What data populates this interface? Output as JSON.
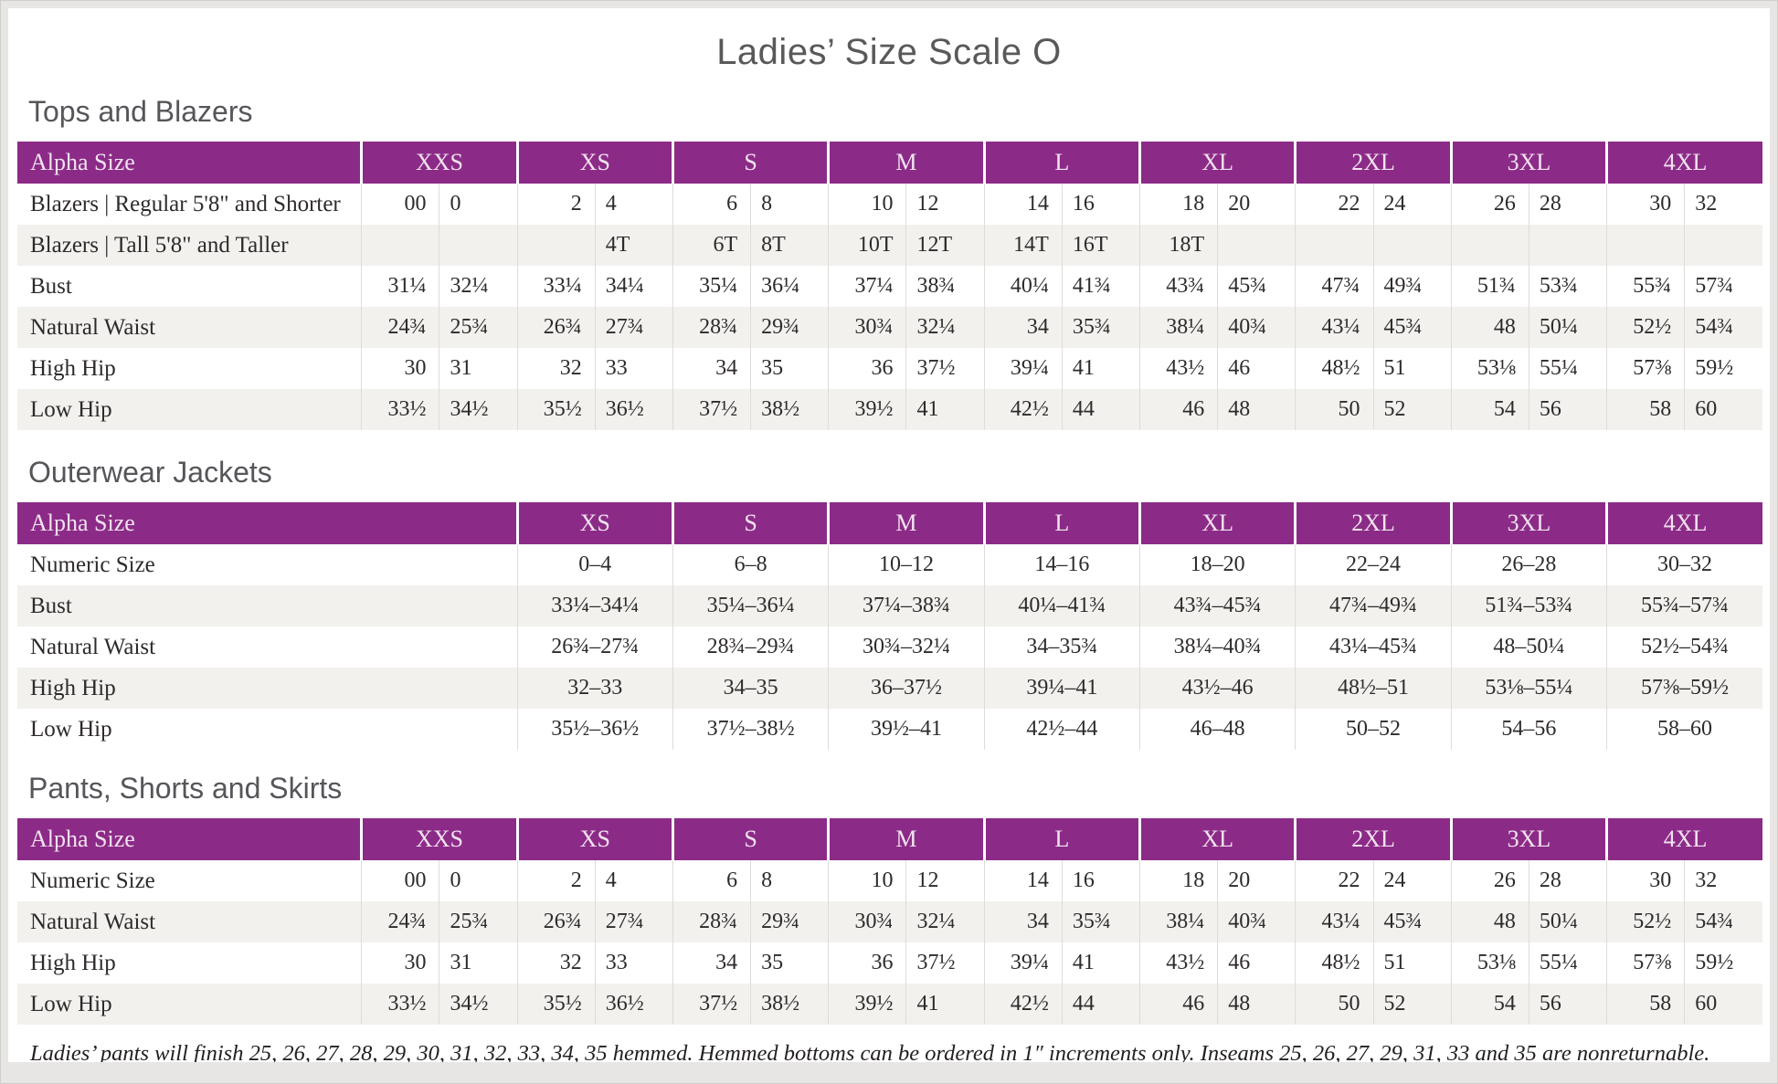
{
  "title": "Ladies’ Size Scale O",
  "colors": {
    "header_purple": "#8c2b87",
    "header_text": "#f2e3f0",
    "stripe_gray": "#f2f1ee",
    "divider_gray": "#dedcd8",
    "heading_gray": "#58595b",
    "body_text": "#2e2a2b",
    "frame_gray": "#e7e6e4"
  },
  "tables": [
    {
      "heading": "Tops and Blazers",
      "corner_label": "Alpha Size",
      "split": true,
      "sizes": [
        "XXS",
        "XS",
        "S",
        "M",
        "L",
        "XL",
        "2XL",
        "3XL",
        "4XL"
      ],
      "rows": [
        {
          "label": "Blazers | Regular 5'8\" and Shorter",
          "values": [
            [
              "00",
              "0"
            ],
            [
              "2",
              "4"
            ],
            [
              "6",
              "8"
            ],
            [
              "10",
              "12"
            ],
            [
              "14",
              "16"
            ],
            [
              "18",
              "20"
            ],
            [
              "22",
              "24"
            ],
            [
              "26",
              "28"
            ],
            [
              "30",
              "32"
            ]
          ]
        },
        {
          "label": "Blazers | Tall 5'8\" and Taller",
          "values": [
            [
              "",
              ""
            ],
            [
              "",
              "4T"
            ],
            [
              "6T",
              "8T"
            ],
            [
              "10T",
              "12T"
            ],
            [
              "14T",
              "16T"
            ],
            [
              "18T",
              ""
            ],
            [
              "",
              ""
            ],
            [
              "",
              ""
            ],
            [
              "",
              ""
            ]
          ]
        },
        {
          "label": "Bust",
          "values": [
            [
              "31¼",
              "32¼"
            ],
            [
              "33¼",
              "34¼"
            ],
            [
              "35¼",
              "36¼"
            ],
            [
              "37¼",
              "38¾"
            ],
            [
              "40¼",
              "41¾"
            ],
            [
              "43¾",
              "45¾"
            ],
            [
              "47¾",
              "49¾"
            ],
            [
              "51¾",
              "53¾"
            ],
            [
              "55¾",
              "57¾"
            ]
          ]
        },
        {
          "label": "Natural Waist",
          "values": [
            [
              "24¾",
              "25¾"
            ],
            [
              "26¾",
              "27¾"
            ],
            [
              "28¾",
              "29¾"
            ],
            [
              "30¾",
              "32¼"
            ],
            [
              "34",
              "35¾"
            ],
            [
              "38¼",
              "40¾"
            ],
            [
              "43¼",
              "45¾"
            ],
            [
              "48",
              "50¼"
            ],
            [
              "52½",
              "54¾"
            ]
          ]
        },
        {
          "label": "High Hip",
          "values": [
            [
              "30",
              "31"
            ],
            [
              "32",
              "33"
            ],
            [
              "34",
              "35"
            ],
            [
              "36",
              "37½"
            ],
            [
              "39¼",
              "41"
            ],
            [
              "43½",
              "46"
            ],
            [
              "48½",
              "51"
            ],
            [
              "53⅛",
              "55¼"
            ],
            [
              "57⅜",
              "59½"
            ]
          ]
        },
        {
          "label": "Low Hip",
          "values": [
            [
              "33½",
              "34½"
            ],
            [
              "35½",
              "36½"
            ],
            [
              "37½",
              "38½"
            ],
            [
              "39½",
              "41"
            ],
            [
              "42½",
              "44"
            ],
            [
              "46",
              "48"
            ],
            [
              "50",
              "52"
            ],
            [
              "54",
              "56"
            ],
            [
              "58",
              "60"
            ]
          ]
        }
      ]
    },
    {
      "heading": "Outerwear Jackets",
      "corner_label": "Alpha Size",
      "split": false,
      "sizes": [
        "XS",
        "S",
        "M",
        "L",
        "XL",
        "2XL",
        "3XL",
        "4XL"
      ],
      "rows": [
        {
          "label": "Numeric Size",
          "values": [
            "0–4",
            "6–8",
            "10–12",
            "14–16",
            "18–20",
            "22–24",
            "26–28",
            "30–32"
          ]
        },
        {
          "label": "Bust",
          "values": [
            "33¼–34¼",
            "35¼–36¼",
            "37¼–38¾",
            "40¼–41¾",
            "43¾–45¾",
            "47¾–49¾",
            "51¾–53¾",
            "55¾–57¾"
          ]
        },
        {
          "label": "Natural Waist",
          "values": [
            "26¾–27¾",
            "28¾–29¾",
            "30¾–32¼",
            "34–35¾",
            "38¼–40¾",
            "43¼–45¾",
            "48–50¼",
            "52½–54¾"
          ]
        },
        {
          "label": "High Hip",
          "values": [
            "32–33",
            "34–35",
            "36–37½",
            "39¼–41",
            "43½–46",
            "48½–51",
            "53⅛–55¼",
            "57⅜–59½"
          ]
        },
        {
          "label": "Low Hip",
          "values": [
            "35½–36½",
            "37½–38½",
            "39½–41",
            "42½–44",
            "46–48",
            "50–52",
            "54–56",
            "58–60"
          ]
        }
      ]
    },
    {
      "heading": "Pants, Shorts and Skirts",
      "corner_label": "Alpha Size",
      "split": true,
      "sizes": [
        "XXS",
        "XS",
        "S",
        "M",
        "L",
        "XL",
        "2XL",
        "3XL",
        "4XL"
      ],
      "rows": [
        {
          "label": "Numeric Size",
          "values": [
            [
              "00",
              "0"
            ],
            [
              "2",
              "4"
            ],
            [
              "6",
              "8"
            ],
            [
              "10",
              "12"
            ],
            [
              "14",
              "16"
            ],
            [
              "18",
              "20"
            ],
            [
              "22",
              "24"
            ],
            [
              "26",
              "28"
            ],
            [
              "30",
              "32"
            ]
          ]
        },
        {
          "label": "Natural Waist",
          "values": [
            [
              "24¾",
              "25¾"
            ],
            [
              "26¾",
              "27¾"
            ],
            [
              "28¾",
              "29¾"
            ],
            [
              "30¾",
              "32¼"
            ],
            [
              "34",
              "35¾"
            ],
            [
              "38¼",
              "40¾"
            ],
            [
              "43¼",
              "45¾"
            ],
            [
              "48",
              "50¼"
            ],
            [
              "52½",
              "54¾"
            ]
          ]
        },
        {
          "label": "High Hip",
          "values": [
            [
              "30",
              "31"
            ],
            [
              "32",
              "33"
            ],
            [
              "34",
              "35"
            ],
            [
              "36",
              "37½"
            ],
            [
              "39¼",
              "41"
            ],
            [
              "43½",
              "46"
            ],
            [
              "48½",
              "51"
            ],
            [
              "53⅛",
              "55¼"
            ],
            [
              "57⅜",
              "59½"
            ]
          ]
        },
        {
          "label": "Low Hip",
          "values": [
            [
              "33½",
              "34½"
            ],
            [
              "35½",
              "36½"
            ],
            [
              "37½",
              "38½"
            ],
            [
              "39½",
              "41"
            ],
            [
              "42½",
              "44"
            ],
            [
              "46",
              "48"
            ],
            [
              "50",
              "52"
            ],
            [
              "54",
              "56"
            ],
            [
              "58",
              "60"
            ]
          ]
        }
      ]
    }
  ],
  "footnote": "Ladies’ pants will finish 25, 26, 27, 28, 29, 30, 31, 32, 33, 34, 35 hemmed. Hemmed bottoms can be ordered in 1″ increments only. Inseams 25, 26, 27, 29, 31, 33 and 35 are nonreturnable."
}
